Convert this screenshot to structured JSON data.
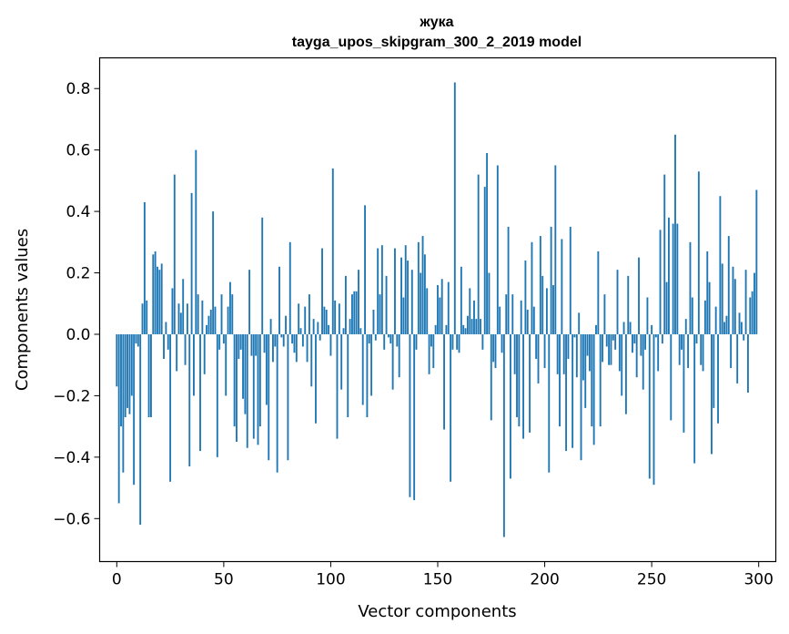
{
  "chart_data": {
    "type": "bar",
    "title": "жука",
    "subtitle": "tayga_upos_skipgram_300_2_2019 model",
    "xlabel": "Vector components",
    "ylabel": "Components values",
    "xlim": [
      -8,
      308
    ],
    "ylim": [
      -0.74,
      0.9
    ],
    "xticks": [
      0,
      50,
      100,
      150,
      200,
      250,
      300
    ],
    "xtick_labels": [
      "0",
      "50",
      "100",
      "150",
      "200",
      "250",
      "300"
    ],
    "yticks": [
      -0.6,
      -0.4,
      -0.2,
      0.0,
      0.2,
      0.4,
      0.6,
      0.8
    ],
    "ytick_labels": [
      "−0.6",
      "−0.4",
      "−0.2",
      "0.0",
      "0.2",
      "0.4",
      "0.6",
      "0.8"
    ],
    "bar_color": "#1f77b4",
    "x": [
      0,
      1,
      2,
      3,
      4,
      5,
      6,
      7,
      8,
      9,
      10,
      11,
      12,
      13,
      14,
      15,
      16,
      17,
      18,
      19,
      20,
      21,
      22,
      23,
      24,
      25,
      26,
      27,
      28,
      29,
      30,
      31,
      32,
      33,
      34,
      35,
      36,
      37,
      38,
      39,
      40,
      41,
      42,
      43,
      44,
      45,
      46,
      47,
      48,
      49,
      50,
      51,
      52,
      53,
      54,
      55,
      56,
      57,
      58,
      59,
      60,
      61,
      62,
      63,
      64,
      65,
      66,
      67,
      68,
      69,
      70,
      71,
      72,
      73,
      74,
      75,
      76,
      77,
      78,
      79,
      80,
      81,
      82,
      83,
      84,
      85,
      86,
      87,
      88,
      89,
      90,
      91,
      92,
      93,
      94,
      95,
      96,
      97,
      98,
      99,
      100,
      101,
      102,
      103,
      104,
      105,
      106,
      107,
      108,
      109,
      110,
      111,
      112,
      113,
      114,
      115,
      116,
      117,
      118,
      119,
      120,
      121,
      122,
      123,
      124,
      125,
      126,
      127,
      128,
      129,
      130,
      131,
      132,
      133,
      134,
      135,
      136,
      137,
      138,
      139,
      140,
      141,
      142,
      143,
      144,
      145,
      146,
      147,
      148,
      149,
      150,
      151,
      152,
      153,
      154,
      155,
      156,
      157,
      158,
      159,
      160,
      161,
      162,
      163,
      164,
      165,
      166,
      167,
      168,
      169,
      170,
      171,
      172,
      173,
      174,
      175,
      176,
      177,
      178,
      179,
      180,
      181,
      182,
      183,
      184,
      185,
      186,
      187,
      188,
      189,
      190,
      191,
      192,
      193,
      194,
      195,
      196,
      197,
      198,
      199,
      200,
      201,
      202,
      203,
      204,
      205,
      206,
      207,
      208,
      209,
      210,
      211,
      212,
      213,
      214,
      215,
      216,
      217,
      218,
      219,
      220,
      221,
      222,
      223,
      224,
      225,
      226,
      227,
      228,
      229,
      230,
      231,
      232,
      233,
      234,
      235,
      236,
      237,
      238,
      239,
      240,
      241,
      242,
      243,
      244,
      245,
      246,
      247,
      248,
      249,
      250,
      251,
      252,
      253,
      254,
      255,
      256,
      257,
      258,
      259,
      260,
      261,
      262,
      263,
      264,
      265,
      266,
      267,
      268,
      269,
      270,
      271,
      272,
      273,
      274,
      275,
      276,
      277,
      278,
      279,
      280,
      281,
      282,
      283,
      284,
      285,
      286,
      287,
      288,
      289,
      290,
      291,
      292,
      293,
      294,
      295,
      296,
      297,
      298,
      299
    ],
    "values": [
      -0.17,
      -0.55,
      -0.3,
      -0.45,
      -0.27,
      -0.24,
      -0.26,
      -0.2,
      -0.49,
      -0.03,
      -0.04,
      -0.62,
      0.1,
      0.43,
      0.11,
      -0.27,
      -0.27,
      0.26,
      0.27,
      0.22,
      0.21,
      0.23,
      -0.08,
      0.04,
      -0.05,
      -0.48,
      0.15,
      0.52,
      -0.12,
      0.1,
      0.07,
      0.18,
      -0.1,
      0.1,
      -0.43,
      0.46,
      -0.2,
      0.6,
      0.13,
      -0.38,
      0.11,
      -0.13,
      0.03,
      0.06,
      0.08,
      0.4,
      0.09,
      -0.4,
      -0.05,
      0.13,
      -0.03,
      -0.2,
      0.09,
      0.17,
      0.13,
      -0.3,
      -0.35,
      -0.08,
      -0.05,
      -0.21,
      -0.26,
      -0.37,
      0.21,
      -0.07,
      -0.34,
      -0.07,
      -0.36,
      -0.3,
      0.38,
      -0.06,
      -0.23,
      -0.41,
      0.05,
      -0.09,
      -0.04,
      -0.45,
      0.22,
      -0.01,
      -0.04,
      0.06,
      -0.41,
      0.3,
      -0.03,
      -0.06,
      -0.09,
      0.1,
      0.02,
      -0.04,
      0.09,
      -0.09,
      0.13,
      -0.17,
      0.05,
      -0.29,
      0.04,
      -0.02,
      0.28,
      0.09,
      0.08,
      0.03,
      -0.07,
      0.54,
      0.11,
      -0.34,
      0.1,
      -0.18,
      0.02,
      0.19,
      -0.27,
      0.05,
      0.13,
      0.14,
      0.14,
      0.21,
      0.02,
      -0.23,
      0.42,
      -0.27,
      -0.03,
      -0.2,
      0.08,
      -0.02,
      0.28,
      0.13,
      0.29,
      -0.05,
      0.19,
      -0.01,
      -0.03,
      -0.18,
      0.28,
      -0.04,
      -0.14,
      0.25,
      0.12,
      0.29,
      0.24,
      -0.53,
      0.21,
      -0.54,
      -0.05,
      0.3,
      0.2,
      0.32,
      0.26,
      0.15,
      -0.13,
      -0.04,
      -0.11,
      0.03,
      0.16,
      0.12,
      0.18,
      -0.31,
      0.03,
      0.17,
      -0.48,
      -0.05,
      0.82,
      -0.05,
      -0.06,
      0.22,
      0.03,
      0.02,
      0.06,
      0.15,
      0.05,
      0.11,
      0.05,
      0.52,
      0.05,
      -0.05,
      0.48,
      0.59,
      0.2,
      -0.28,
      -0.09,
      -0.11,
      0.55,
      0.09,
      -0.06,
      -0.66,
      0.13,
      0.35,
      -0.47,
      0.13,
      -0.13,
      -0.27,
      -0.3,
      0.11,
      -0.34,
      0.24,
      0.08,
      -0.32,
      0.3,
      0.09,
      -0.08,
      -0.16,
      0.32,
      0.19,
      -0.11,
      0.15,
      -0.45,
      0.35,
      0.16,
      0.55,
      -0.13,
      -0.3,
      0.31,
      -0.13,
      -0.38,
      -0.08,
      0.35,
      -0.37,
      -0.01,
      -0.14,
      0.07,
      -0.41,
      -0.15,
      -0.24,
      -0.07,
      -0.12,
      -0.3,
      -0.36,
      0.03,
      0.27,
      -0.3,
      -0.09,
      0.13,
      -0.04,
      -0.1,
      -0.1,
      -0.02,
      -0.05,
      0.21,
      -0.12,
      -0.2,
      0.04,
      -0.26,
      0.19,
      0.04,
      -0.06,
      -0.03,
      -0.14,
      0.25,
      -0.07,
      -0.18,
      -0.05,
      0.12,
      -0.47,
      0.03,
      -0.49,
      -0.01,
      -0.12,
      0.34,
      -0.03,
      0.52,
      0.17,
      0.38,
      -0.28,
      0.36,
      0.65,
      0.36,
      -0.1,
      -0.05,
      -0.32,
      0.05,
      -0.11,
      0.3,
      0.12,
      -0.42,
      -0.03,
      0.53,
      -0.1,
      -0.12,
      0.11,
      0.27,
      0.17,
      -0.39,
      -0.24,
      0.09,
      -0.29,
      0.45,
      0.23,
      0.04,
      0.06,
      0.32,
      -0.11,
      0.22,
      0.18,
      -0.16,
      0.07,
      0.04,
      -0.02,
      0.21,
      -0.19,
      0.12,
      0.14,
      0.2,
      0.47
    ]
  }
}
